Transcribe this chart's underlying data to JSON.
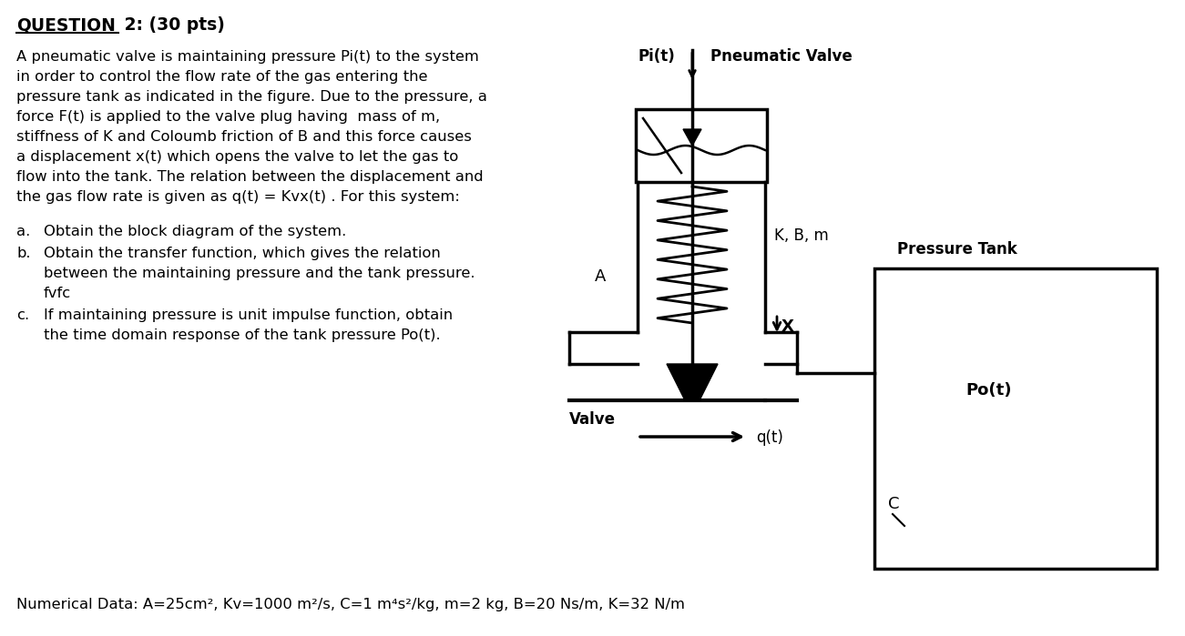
{
  "bg_color": "#ffffff",
  "title_bold": "QUESTION",
  "title_rest": " 2: (30 pts)",
  "body_text_lines": [
    "A pneumatic valve is maintaining pressure Pi(t) to the system",
    "in order to control the flow rate of the gas entering the",
    "pressure tank as indicated in the figure. Due to the pressure, a",
    "force F(t) is applied to the valve plug having  mass of m,",
    "stiffness of K and Coloumb friction of B and this force causes",
    "a displacement x(t) which opens the valve to let the gas to",
    "flow into the tank. The relation between the displacement and",
    "the gas flow rate is given as q(t) = Kvx(t) . For this system:"
  ],
  "list_a_label": "a.",
  "list_a_text": "Obtain the block diagram of the system.",
  "list_b_label": "b.",
  "list_b_line1": "Obtain the transfer function, which gives the relation",
  "list_b_line2": "between the maintaining pressure and the tank pressure.",
  "list_b_line3": "fvfc",
  "list_c_label": "c.",
  "list_c_line1": "If maintaining pressure is unit impulse function, obtain",
  "list_c_line2": "the time domain response of the tank pressure Po(t).",
  "numerical_data": "Numerical Data: A=25cm², Kv=1000 m²/s, C=1 m⁴s²/kg, m=2 kg, B=20 Ns/m, K=32 N/m",
  "lbl_Pi_t": "Pi(t)",
  "lbl_pneumatic_valve": "Pneumatic Valve",
  "lbl_K_B_m": "K, B, m",
  "lbl_pressure_tank": "Pressure Tank",
  "lbl_A": "A",
  "lbl_X": "X",
  "lbl_valve": "Valve",
  "lbl_q_t": "q(t)",
  "lbl_Po_t": "Po(t)",
  "lbl_C": "C"
}
